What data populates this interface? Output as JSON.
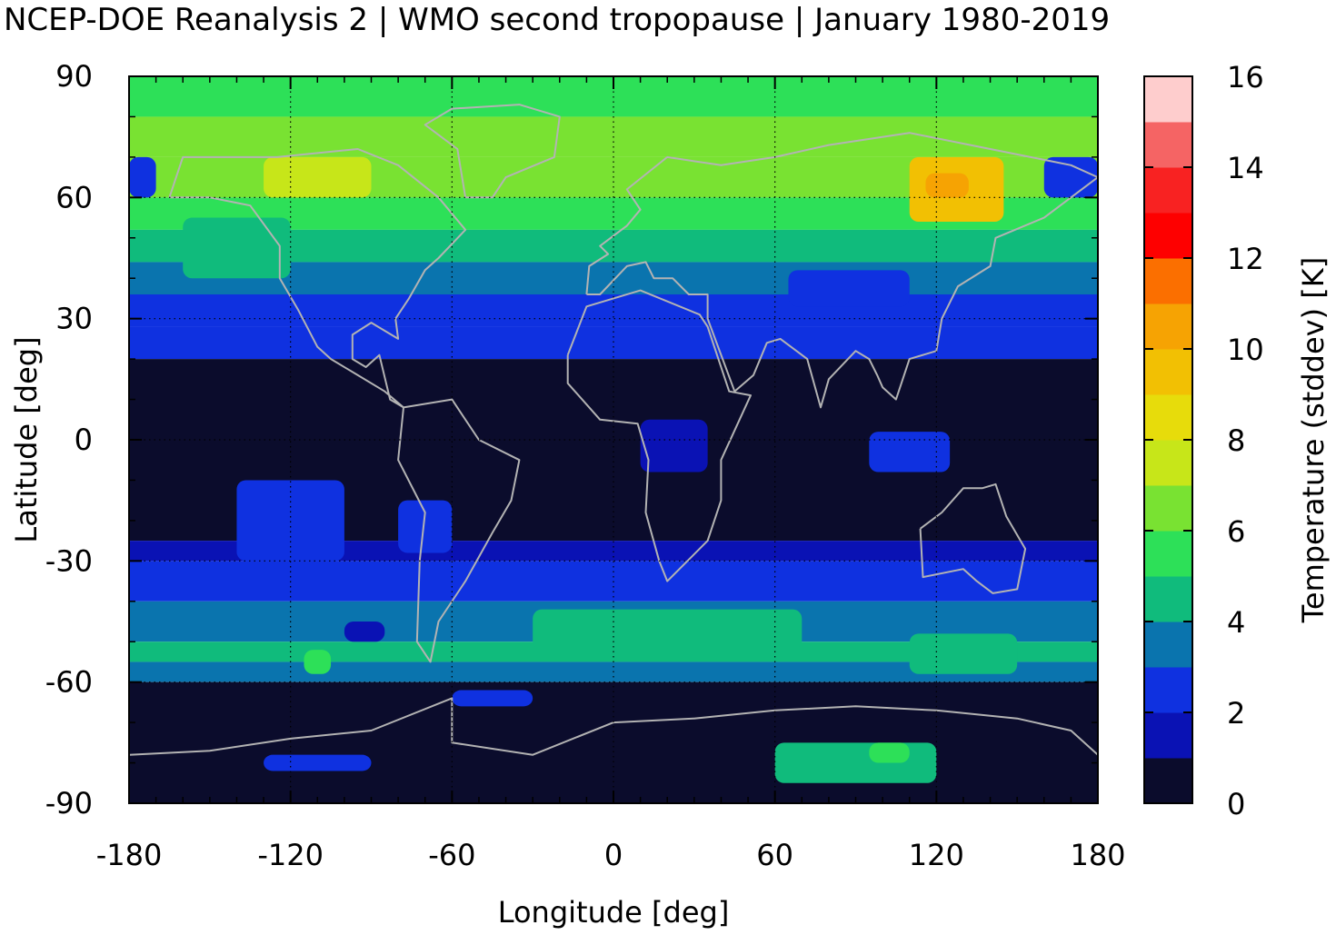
{
  "chart_data": {
    "type": "heatmap",
    "title": "NCEP-DOE Reanalysis 2 | WMO second tropopause | January 1980-2019",
    "xlabel": "Longitude [deg]",
    "ylabel": "Latitude [deg]",
    "colorbar_label": "Temperature (stddev) [K]",
    "xlim": [
      -180,
      180
    ],
    "ylim": [
      -90,
      90
    ],
    "x_ticks": [
      "-180",
      "-120",
      "-60",
      "0",
      "60",
      "120",
      "180"
    ],
    "y_ticks": [
      "90",
      "60",
      "30",
      "0",
      "-30",
      "-60",
      "-90"
    ],
    "colorbar_range": [
      0,
      16
    ],
    "colorbar_ticks": [
      "0",
      "2",
      "4",
      "6",
      "8",
      "10",
      "12",
      "14",
      "16"
    ],
    "grid": true,
    "colors": [
      "#0b0c2c",
      "#0a12b4",
      "#0f31e0",
      "#0a74ae",
      "#10bb7c",
      "#2de058",
      "#79e232",
      "#c7e619",
      "#e7dc0b",
      "#f2c003",
      "#f6a303",
      "#fb6f00",
      "#fe0000",
      "#f82222",
      "#f56464",
      "#fecdcd"
    ],
    "bands": [
      {
        "lat": [
          80,
          90
        ],
        "value": 5.5
      },
      {
        "lat": [
          70,
          80
        ],
        "value": 6.4
      },
      {
        "lat": [
          60,
          70
        ],
        "value": 6.8
      },
      {
        "lat": [
          52,
          60
        ],
        "value": 5.4
      },
      {
        "lat": [
          44,
          52
        ],
        "value": 4.6
      },
      {
        "lat": [
          36,
          44
        ],
        "value": 3.6
      },
      {
        "lat": [
          28,
          36
        ],
        "value": 2.6
      },
      {
        "lat": [
          20,
          28
        ],
        "value": 2.3
      },
      {
        "lat": [
          -25,
          20
        ],
        "value": 0.4
      },
      {
        "lat": [
          -30,
          -25
        ],
        "value": 1.4
      },
      {
        "lat": [
          -40,
          -30
        ],
        "value": 2.6
      },
      {
        "lat": [
          -50,
          -40
        ],
        "value": 3.4
      },
      {
        "lat": [
          -55,
          -50
        ],
        "value": 4.2
      },
      {
        "lat": [
          -60,
          -55
        ],
        "value": 3.6
      },
      {
        "lat": [
          -90,
          -60
        ],
        "value": 0.4
      }
    ],
    "features": [
      {
        "lon": [
          110,
          145
        ],
        "lat": [
          54,
          70
        ],
        "value": 9.2
      },
      {
        "lon": [
          116,
          132
        ],
        "lat": [
          60,
          66
        ],
        "value": 10.6
      },
      {
        "lon": [
          -130,
          -90
        ],
        "lat": [
          60,
          70
        ],
        "value": 7.4
      },
      {
        "lon": [
          -160,
          -120
        ],
        "lat": [
          40,
          55
        ],
        "value": 4.6
      },
      {
        "lon": [
          65,
          110
        ],
        "lat": [
          33,
          42
        ],
        "value": 2.6
      },
      {
        "lon": [
          -180,
          -170
        ],
        "lat": [
          60,
          70
        ],
        "value": 2.6
      },
      {
        "lon": [
          160,
          180
        ],
        "lat": [
          60,
          70
        ],
        "value": 2.6
      },
      {
        "lon": [
          95,
          125
        ],
        "lat": [
          -8,
          2
        ],
        "value": 2.6
      },
      {
        "lon": [
          10,
          35
        ],
        "lat": [
          -8,
          5
        ],
        "value": 1.4
      },
      {
        "lon": [
          -140,
          -100
        ],
        "lat": [
          -30,
          -10
        ],
        "value": 2.6
      },
      {
        "lon": [
          -80,
          -60
        ],
        "lat": [
          -28,
          -15
        ],
        "value": 2.4
      },
      {
        "lon": [
          -30,
          70
        ],
        "lat": [
          -52,
          -42
        ],
        "value": 4.6
      },
      {
        "lon": [
          110,
          150
        ],
        "lat": [
          -58,
          -48
        ],
        "value": 4.6
      },
      {
        "lon": [
          -115,
          -105
        ],
        "lat": [
          -58,
          -52
        ],
        "value": 5.0
      },
      {
        "lon": [
          -100,
          -85
        ],
        "lat": [
          -50,
          -45
        ],
        "value": 1.4
      },
      {
        "lon": [
          60,
          120
        ],
        "lat": [
          -85,
          -75
        ],
        "value": 4.8
      },
      {
        "lon": [
          95,
          110
        ],
        "lat": [
          -80,
          -75
        ],
        "value": 5.6
      },
      {
        "lon": [
          -130,
          -90
        ],
        "lat": [
          -82,
          -78
        ],
        "value": 2.6
      },
      {
        "lon": [
          -60,
          -30
        ],
        "lat": [
          -66,
          -62
        ],
        "value": 2.4
      }
    ],
    "coastline_color": "#b3b3b3"
  }
}
